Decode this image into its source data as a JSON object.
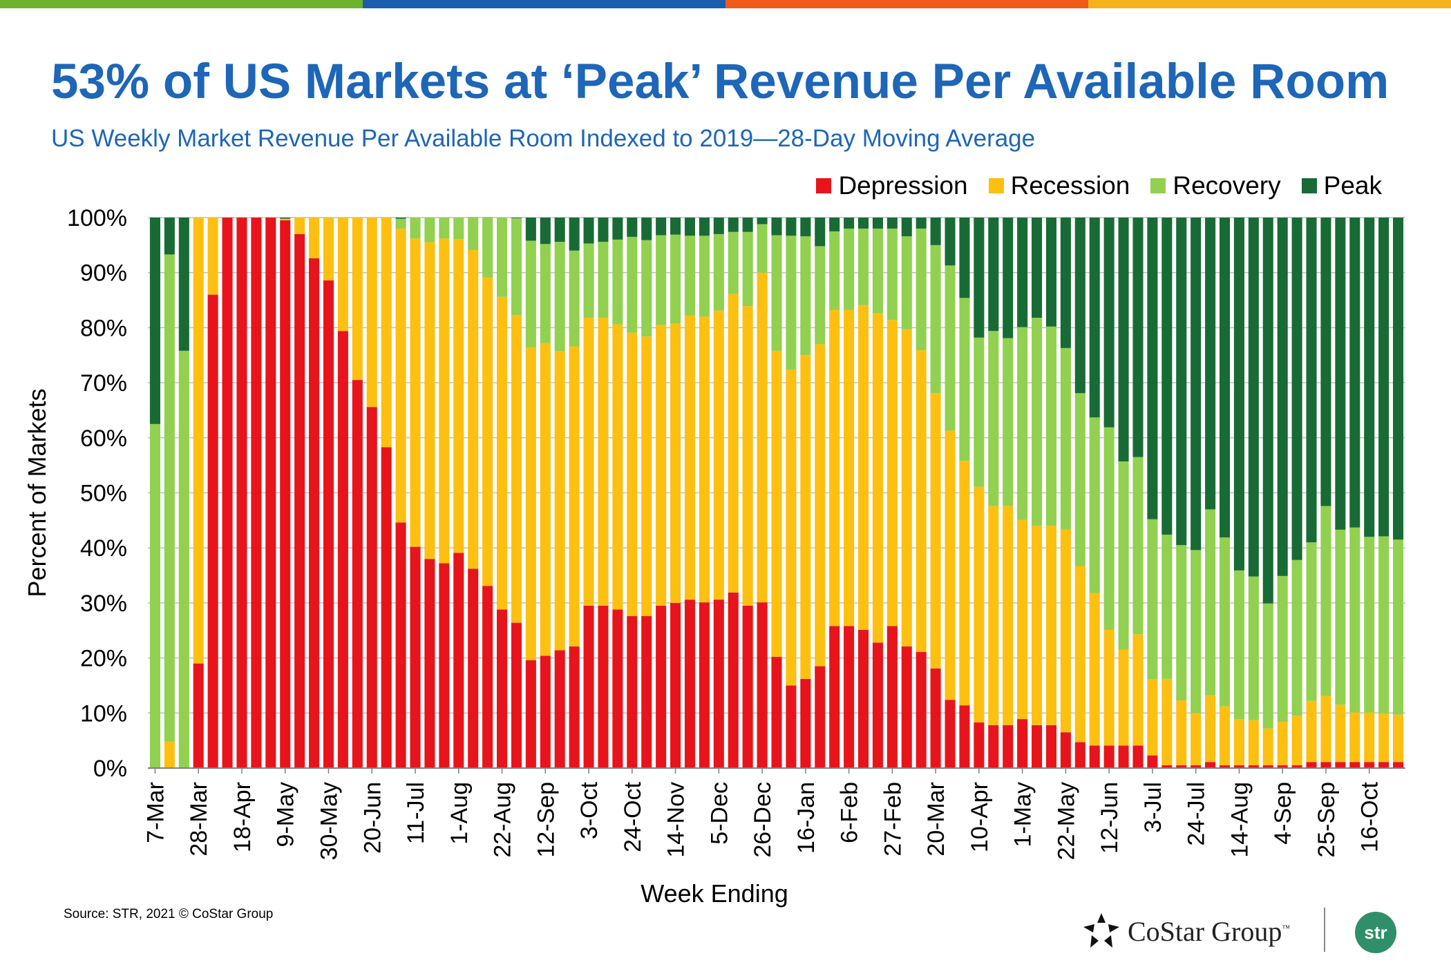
{
  "header": {
    "title": "53% of US Markets at ‘Peak’ Revenue Per Available Room",
    "subtitle": "US Weekly Market Revenue Per Available Room Indexed to 2019—28-Day Moving Average"
  },
  "footer": {
    "source": "Source: STR, 2021 © CoStar Group",
    "costar_logo_text": "CoStar Group",
    "costar_tm": "™",
    "str_logo_text": "str"
  },
  "colors": {
    "topbar": [
      "#6cb42c",
      "#1b5fac",
      "#f05a1a",
      "#f5b21b"
    ],
    "depression": "#e8141c",
    "recession": "#fdc010",
    "recovery": "#92d050",
    "peak": "#186b35"
  },
  "chart_data": {
    "type": "bar",
    "stacked": true,
    "xlabel": "Week Ending",
    "ylabel": "Percent of Markets",
    "ylim": [
      0,
      100
    ],
    "yticks": [
      "0%",
      "10%",
      "20%",
      "30%",
      "40%",
      "50%",
      "60%",
      "70%",
      "80%",
      "90%",
      "100%"
    ],
    "grid": true,
    "legend_position": "top-right",
    "x_tick_labels": [
      "7-Mar",
      "28-Mar",
      "18-Apr",
      "9-May",
      "30-May",
      "20-Jun",
      "11-Jul",
      "1-Aug",
      "22-Aug",
      "12-Sep",
      "3-Oct",
      "24-Oct",
      "14-Nov",
      "5-Dec",
      "26-Dec",
      "16-Jan",
      "6-Feb",
      "27-Feb",
      "20-Mar",
      "10-Apr",
      "1-May",
      "22-May",
      "12-Jun",
      "3-Jul",
      "24-Jul",
      "14-Aug",
      "4-Sep",
      "25-Sep",
      "16-Oct"
    ],
    "x_tick_every": 3,
    "series": [
      {
        "name": "Depression",
        "values": [
          0,
          0,
          0,
          19,
          86,
          100,
          100,
          100,
          100,
          99.5,
          97,
          92.6,
          88.6,
          79.4,
          70.5,
          65.6,
          58.3,
          44.6,
          40.2,
          38,
          37.2,
          39.1,
          36.2,
          33.1,
          28.8,
          26.4,
          19.6,
          20.4,
          21.4,
          22.1,
          29.5,
          29.5,
          28.8,
          27.6,
          27.6,
          29.5,
          30,
          30.6,
          30.1,
          30.6,
          31.9,
          29.5,
          30.1,
          20.2,
          15,
          16.2,
          18.5,
          25.8,
          25.8,
          25.1,
          22.8,
          25.8,
          22.1,
          21.1,
          18.1,
          12.4,
          11.4,
          8.3,
          7.8,
          7.8,
          8.9,
          7.8,
          7.8,
          6.5,
          4.7,
          4.1,
          4.1,
          4.1,
          4.1,
          2.3,
          0.5,
          0.5,
          0.5,
          1.1,
          0.5,
          0.5,
          0.5,
          0.5,
          0.5,
          0.5,
          1.1,
          1.1,
          1.1,
          1.1,
          1.1,
          1.1,
          1.1
        ]
      },
      {
        "name": "Recession",
        "values": [
          0,
          4.8,
          0,
          81,
          14,
          0,
          0,
          0,
          0,
          0.3,
          3,
          7.4,
          11.4,
          20.6,
          29.5,
          34.4,
          41.7,
          53.4,
          56,
          57.5,
          59,
          57,
          57.9,
          56,
          56.8,
          55.9,
          56.8,
          56.8,
          54.3,
          54.5,
          52.3,
          52.3,
          51.8,
          51.5,
          50.8,
          51,
          50.8,
          51.6,
          51.9,
          52.5,
          54.2,
          54.4,
          59.9,
          55.6,
          57.4,
          58.8,
          58.5,
          57.4,
          57.4,
          59,
          59.8,
          55.6,
          57.6,
          54.8,
          50,
          48.9,
          44.4,
          42.8,
          39.8,
          39.8,
          36.2,
          36.2,
          36.2,
          36.8,
          32,
          27.7,
          21,
          17.4,
          20.2,
          13.8,
          15.7,
          11.8,
          9.5,
          12.1,
          10.7,
          8.4,
          8.2,
          6.7,
          7.9,
          9,
          11.1,
          12,
          10.4,
          9,
          9,
          8.8,
          8.6
        ]
      },
      {
        "name": "Recovery",
        "values": [
          62.5,
          88.5,
          75.8,
          0,
          0,
          0,
          0,
          0,
          0,
          0,
          0,
          0,
          0,
          0,
          0,
          0,
          0,
          1.8,
          3.8,
          4.5,
          3.8,
          3.9,
          6,
          11,
          14.4,
          17.6,
          19.4,
          18,
          19.9,
          17.4,
          13.5,
          13.8,
          15.4,
          17.4,
          17.5,
          16.3,
          16.1,
          14.5,
          14.7,
          13.9,
          11.3,
          13.5,
          8.8,
          21,
          24.3,
          21.6,
          17.8,
          14.3,
          14.8,
          13.9,
          15.4,
          16.6,
          16.9,
          22.1,
          26.9,
          30,
          29.6,
          27.1,
          31.8,
          30.5,
          35,
          37.8,
          36.2,
          33,
          31.4,
          31.9,
          36.8,
          34.2,
          32.2,
          29.1,
          26.2,
          28.2,
          29.6,
          33.8,
          30.7,
          27,
          26.1,
          22.7,
          26.5,
          28.3,
          28.8,
          34.5,
          31.8,
          33.6,
          31.9,
          32.2,
          31.8
        ]
      },
      {
        "name": "Peak",
        "values": [
          37.5,
          6.7,
          24.2,
          0,
          0,
          0,
          0,
          0,
          0,
          0.2,
          0,
          0,
          0,
          0,
          0,
          0,
          0,
          0.2,
          0,
          0,
          0,
          0,
          0,
          0,
          0,
          0.1,
          4.2,
          4.8,
          4.4,
          6,
          4.7,
          4.4,
          4,
          3.5,
          4.1,
          3.2,
          3.1,
          3.3,
          3.3,
          3,
          2.6,
          2.6,
          1.2,
          3.2,
          3.3,
          3.4,
          5.2,
          2.5,
          2,
          2,
          2,
          2,
          3.4,
          2,
          5,
          8.7,
          14.6,
          21.8,
          20.6,
          21.9,
          19.9,
          18.2,
          19.8,
          23.7,
          31.9,
          36.3,
          38.1,
          44.3,
          43.5,
          54.8,
          57.6,
          59.5,
          60.4,
          53,
          58.1,
          64.1,
          65.2,
          70.1,
          65.1,
          62.2,
          59,
          52.4,
          56.7,
          56.3,
          58,
          57.9,
          58.5
        ]
      }
    ]
  }
}
